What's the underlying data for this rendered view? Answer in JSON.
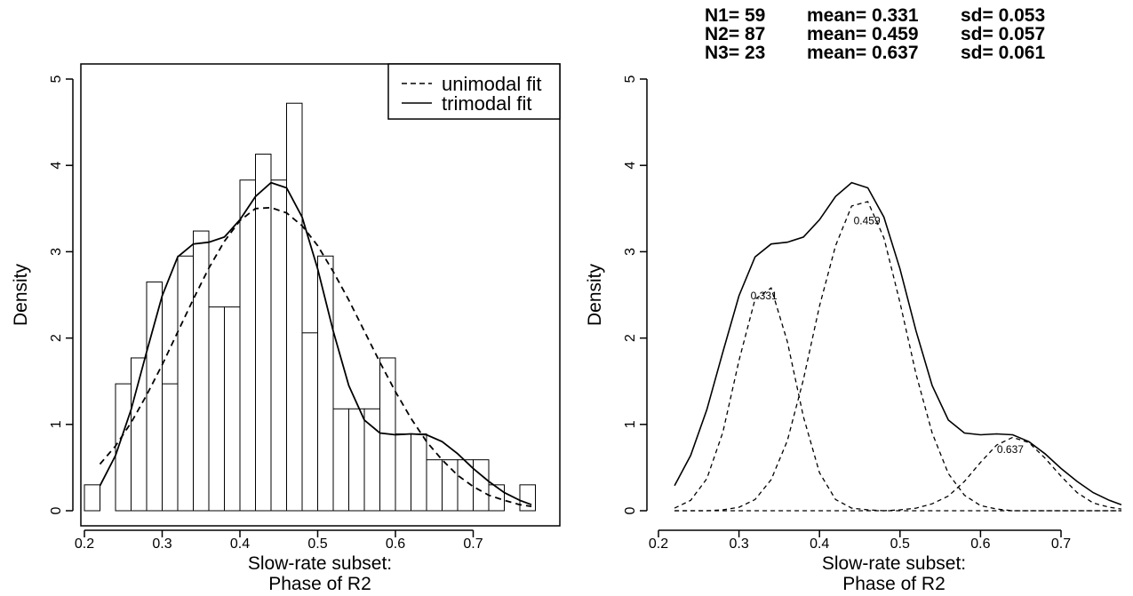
{
  "chart_data": [
    {
      "type": "bar",
      "panel": "left",
      "xlabel": [
        "Slow-rate subset:",
        "Phase of R2"
      ],
      "ylabel": "Density",
      "xlim": [
        0.2,
        0.78
      ],
      "ylim": [
        0,
        5
      ],
      "xticks": [
        "0.2",
        "0.3",
        "0.4",
        "0.5",
        "0.6",
        "0.7"
      ],
      "yticks": [
        "0",
        "1",
        "2",
        "3",
        "4",
        "5"
      ],
      "grid": false,
      "bin_width": 0.02,
      "bins": [
        {
          "start": 0.2,
          "density": 0.3
        },
        {
          "start": 0.22,
          "density": 0.0
        },
        {
          "start": 0.24,
          "density": 1.47
        },
        {
          "start": 0.26,
          "density": 1.77
        },
        {
          "start": 0.28,
          "density": 2.65
        },
        {
          "start": 0.3,
          "density": 1.47
        },
        {
          "start": 0.32,
          "density": 2.95
        },
        {
          "start": 0.34,
          "density": 3.24
        },
        {
          "start": 0.36,
          "density": 2.36
        },
        {
          "start": 0.38,
          "density": 2.36
        },
        {
          "start": 0.4,
          "density": 3.83
        },
        {
          "start": 0.42,
          "density": 4.13
        },
        {
          "start": 0.44,
          "density": 3.83
        },
        {
          "start": 0.46,
          "density": 4.72
        },
        {
          "start": 0.48,
          "density": 2.06
        },
        {
          "start": 0.5,
          "density": 2.95
        },
        {
          "start": 0.52,
          "density": 1.18
        },
        {
          "start": 0.54,
          "density": 1.18
        },
        {
          "start": 0.56,
          "density": 1.18
        },
        {
          "start": 0.58,
          "density": 1.77
        },
        {
          "start": 0.6,
          "density": 0.89
        },
        {
          "start": 0.62,
          "density": 0.89
        },
        {
          "start": 0.64,
          "density": 0.59
        },
        {
          "start": 0.66,
          "density": 0.59
        },
        {
          "start": 0.68,
          "density": 0.59
        },
        {
          "start": 0.7,
          "density": 0.59
        },
        {
          "start": 0.72,
          "density": 0.3
        },
        {
          "start": 0.74,
          "density": 0.0
        },
        {
          "start": 0.76,
          "density": 0.3
        }
      ],
      "series": [
        {
          "name": "unimodal fit",
          "style": "dashed",
          "x": [
            0.22,
            0.24,
            0.26,
            0.28,
            0.3,
            0.32,
            0.34,
            0.36,
            0.38,
            0.4,
            0.42,
            0.44,
            0.46,
            0.48,
            0.5,
            0.52,
            0.54,
            0.56,
            0.58,
            0.6,
            0.62,
            0.64,
            0.66,
            0.68,
            0.7,
            0.72,
            0.74,
            0.76,
            0.775
          ],
          "y": [
            0.54,
            0.75,
            1.02,
            1.34,
            1.69,
            2.07,
            2.45,
            2.81,
            3.12,
            3.36,
            3.5,
            3.51,
            3.45,
            3.3,
            3.07,
            2.77,
            2.44,
            2.08,
            1.72,
            1.38,
            1.07,
            0.8,
            0.59,
            0.41,
            0.28,
            0.18,
            0.12,
            0.07,
            0.05
          ]
        },
        {
          "name": "trimodal fit",
          "style": "solid",
          "x": [
            0.22,
            0.24,
            0.26,
            0.28,
            0.3,
            0.32,
            0.34,
            0.36,
            0.38,
            0.4,
            0.42,
            0.44,
            0.46,
            0.48,
            0.5,
            0.52,
            0.54,
            0.56,
            0.58,
            0.6,
            0.62,
            0.64,
            0.66,
            0.68,
            0.7,
            0.72,
            0.74,
            0.76,
            0.775
          ],
          "y": [
            0.29,
            0.64,
            1.17,
            1.84,
            2.49,
            2.94,
            3.09,
            3.11,
            3.17,
            3.37,
            3.64,
            3.8,
            3.74,
            3.4,
            2.8,
            2.08,
            1.45,
            1.05,
            0.9,
            0.88,
            0.89,
            0.88,
            0.8,
            0.66,
            0.49,
            0.34,
            0.21,
            0.12,
            0.07
          ]
        }
      ],
      "legend": {
        "position": "top-right",
        "entries": [
          "unimodal fit",
          "trimodal fit"
        ]
      }
    },
    {
      "type": "line",
      "panel": "right",
      "xlabel": [
        "Slow-rate subset:",
        "Phase of R2"
      ],
      "ylabel": "Density",
      "xlim": [
        0.2,
        0.78
      ],
      "ylim": [
        0,
        5
      ],
      "xticks": [
        "0.2",
        "0.3",
        "0.4",
        "0.5",
        "0.6",
        "0.7"
      ],
      "yticks": [
        "0",
        "1",
        "2",
        "3",
        "4",
        "5"
      ],
      "grid": false,
      "stats": [
        {
          "n": "N1= 59",
          "mean": "mean= 0.331",
          "sd": "sd= 0.053"
        },
        {
          "n": "N2= 87",
          "mean": "mean= 0.459",
          "sd": "sd= 0.057"
        },
        {
          "n": "N3= 23",
          "mean": "mean= 0.637",
          "sd": "sd= 0.061"
        }
      ],
      "series": [
        {
          "style": "solid",
          "x": [
            0.22,
            0.24,
            0.26,
            0.28,
            0.3,
            0.32,
            0.34,
            0.36,
            0.38,
            0.4,
            0.42,
            0.44,
            0.46,
            0.48,
            0.5,
            0.52,
            0.54,
            0.56,
            0.58,
            0.6,
            0.62,
            0.64,
            0.66,
            0.68,
            0.7,
            0.72,
            0.74,
            0.76,
            0.775
          ],
          "y": [
            0.29,
            0.64,
            1.17,
            1.84,
            2.49,
            2.94,
            3.09,
            3.11,
            3.17,
            3.37,
            3.64,
            3.8,
            3.74,
            3.4,
            2.8,
            2.08,
            1.45,
            1.05,
            0.9,
            0.88,
            0.89,
            0.88,
            0.8,
            0.66,
            0.49,
            0.34,
            0.21,
            0.12,
            0.07
          ]
        },
        {
          "style": "dashed",
          "x": [
            0.22,
            0.24,
            0.26,
            0.28,
            0.3,
            0.32,
            0.34,
            0.36,
            0.38,
            0.4,
            0.42,
            0.44,
            0.46,
            0.48,
            0.5,
            0.52,
            0.54,
            0.56,
            0.58,
            0.6,
            0.62,
            0.64,
            0.66,
            0.68,
            0.7,
            0.72,
            0.74,
            0.76,
            0.775
          ],
          "y": [
            0.03,
            0.12,
            0.37,
            0.91,
            1.74,
            2.45,
            2.58,
            1.96,
            1.09,
            0.44,
            0.13,
            0.03,
            0.01,
            0.0,
            0.0,
            0.0,
            0.0,
            0.0,
            0.0,
            0.0,
            0.0,
            0.0,
            0.0,
            0.0,
            0.0,
            0.0,
            0.0,
            0.0,
            0.0
          ]
        },
        {
          "style": "dashed",
          "x": [
            0.22,
            0.24,
            0.26,
            0.28,
            0.3,
            0.32,
            0.34,
            0.36,
            0.38,
            0.4,
            0.42,
            0.44,
            0.46,
            0.48,
            0.5,
            0.52,
            0.54,
            0.56,
            0.58,
            0.6,
            0.62,
            0.64,
            0.66,
            0.68,
            0.7,
            0.72,
            0.74,
            0.76,
            0.775
          ],
          "y": [
            0.0,
            0.0,
            0.0,
            0.01,
            0.04,
            0.13,
            0.36,
            0.81,
            1.52,
            2.37,
            3.07,
            3.53,
            3.58,
            3.16,
            2.41,
            1.58,
            0.9,
            0.43,
            0.18,
            0.06,
            0.02,
            0.0,
            0.0,
            0.0,
            0.0,
            0.0,
            0.0,
            0.0,
            0.0
          ]
        },
        {
          "style": "dashed",
          "x": [
            0.22,
            0.24,
            0.26,
            0.28,
            0.3,
            0.32,
            0.34,
            0.36,
            0.38,
            0.4,
            0.42,
            0.44,
            0.46,
            0.48,
            0.5,
            0.52,
            0.54,
            0.56,
            0.58,
            0.6,
            0.62,
            0.64,
            0.66,
            0.68,
            0.7,
            0.72,
            0.74,
            0.76,
            0.775
          ],
          "y": [
            0.0,
            0.0,
            0.0,
            0.0,
            0.0,
            0.0,
            0.0,
            0.0,
            0.0,
            0.0,
            0.0,
            0.0,
            0.0,
            0.0,
            0.01,
            0.03,
            0.08,
            0.17,
            0.34,
            0.56,
            0.76,
            0.85,
            0.79,
            0.61,
            0.4,
            0.21,
            0.09,
            0.04,
            0.02
          ]
        }
      ],
      "annotations": [
        {
          "text": "0.331",
          "x": 0.331,
          "y": 2.45
        },
        {
          "text": "0.459",
          "x": 0.459,
          "y": 3.32
        },
        {
          "text": "0.637",
          "x": 0.637,
          "y": 0.67
        }
      ]
    }
  ]
}
